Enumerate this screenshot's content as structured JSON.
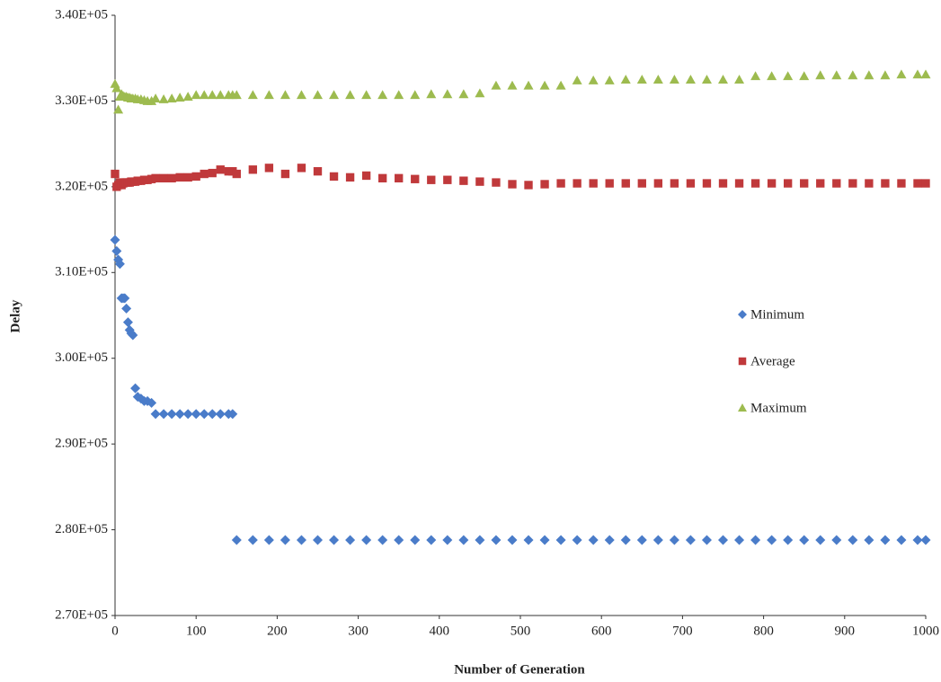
{
  "chart_data": {
    "type": "scatter",
    "x_label": "Number of Generation",
    "y_label": "Delay",
    "x": [
      0,
      2,
      4,
      6,
      8,
      10,
      12,
      14,
      16,
      18,
      20,
      22,
      25,
      28,
      32,
      36,
      40,
      45,
      50,
      60,
      70,
      80,
      90,
      100,
      110,
      120,
      130,
      140,
      145,
      150,
      170,
      190,
      210,
      230,
      250,
      270,
      290,
      310,
      330,
      350,
      370,
      390,
      410,
      430,
      450,
      470,
      490,
      510,
      530,
      550,
      570,
      590,
      610,
      630,
      650,
      670,
      690,
      710,
      730,
      750,
      770,
      790,
      810,
      830,
      850,
      870,
      890,
      910,
      930,
      950,
      970,
      990,
      1000
    ],
    "series": [
      {
        "name": "Minimum",
        "color": "#4a7cc9",
        "marker": "diamond",
        "values": [
          313800,
          312500,
          311500,
          311000,
          307000,
          307000,
          307000,
          305800,
          304200,
          303300,
          302900,
          302700,
          296500,
          295500,
          295300,
          295000,
          295000,
          294800,
          293500,
          293500,
          293500,
          293500,
          293500,
          293500,
          293500,
          293500,
          293500,
          293500,
          293500,
          278800,
          278800,
          278800,
          278800,
          278800,
          278800,
          278800,
          278800,
          278800,
          278800,
          278800,
          278800,
          278800,
          278800,
          278800,
          278800,
          278800,
          278800,
          278800,
          278800,
          278800,
          278800,
          278800,
          278800,
          278800,
          278800,
          278800,
          278800,
          278800,
          278800,
          278800,
          278800,
          278800,
          278800,
          278800,
          278800,
          278800,
          278800,
          278800,
          278800,
          278800,
          278800,
          278800,
          278800
        ]
      },
      {
        "name": "Average",
        "color": "#c0393b",
        "marker": "square",
        "values": [
          321500,
          320000,
          320200,
          320500,
          320200,
          320400,
          320500,
          320500,
          320500,
          320500,
          320600,
          320600,
          320600,
          320700,
          320700,
          320800,
          320800,
          320900,
          321000,
          321000,
          321000,
          321100,
          321100,
          321200,
          321500,
          321600,
          322000,
          321800,
          321800,
          321500,
          322000,
          322200,
          321500,
          322200,
          321800,
          321200,
          321100,
          321300,
          321000,
          321000,
          320900,
          320800,
          320800,
          320700,
          320600,
          320500,
          320300,
          320200,
          320300,
          320400,
          320400,
          320400,
          320400,
          320400,
          320400,
          320400,
          320400,
          320400,
          320400,
          320400,
          320400,
          320400,
          320400,
          320400,
          320400,
          320400,
          320400,
          320400,
          320400,
          320400,
          320400,
          320400,
          320400
        ]
      },
      {
        "name": "Maximum",
        "color": "#9dbb4f",
        "marker": "triangle",
        "values": [
          332000,
          331500,
          329000,
          330500,
          330800,
          330600,
          330500,
          330500,
          330400,
          330400,
          330300,
          330300,
          330300,
          330200,
          330200,
          330100,
          330000,
          330000,
          330300,
          330200,
          330300,
          330400,
          330500,
          330700,
          330700,
          330700,
          330700,
          330700,
          330700,
          330700,
          330700,
          330700,
          330700,
          330700,
          330700,
          330700,
          330700,
          330700,
          330700,
          330700,
          330700,
          330800,
          330800,
          330800,
          330900,
          331800,
          331800,
          331800,
          331800,
          331800,
          332400,
          332400,
          332400,
          332500,
          332500,
          332500,
          332500,
          332500,
          332500,
          332500,
          332500,
          332900,
          332900,
          332900,
          332900,
          333000,
          333000,
          333000,
          333000,
          333000,
          333100,
          333100,
          333100
        ]
      }
    ],
    "xlim": [
      0,
      1000
    ],
    "xticks": [
      0,
      100,
      200,
      300,
      400,
      500,
      600,
      700,
      800,
      900,
      1000
    ],
    "ylim": [
      270000,
      340000
    ],
    "yticks": [
      {
        "value": 270000,
        "label": "2.70E+05"
      },
      {
        "value": 280000,
        "label": "2.80E+05"
      },
      {
        "value": 290000,
        "label": "2.90E+05"
      },
      {
        "value": 300000,
        "label": "3.00E+05"
      },
      {
        "value": 310000,
        "label": "3.10E+05"
      },
      {
        "value": 320000,
        "label": "3.20E+05"
      },
      {
        "value": 330000,
        "label": "3.30E+05"
      },
      {
        "value": 340000,
        "label": "3.40E+05"
      }
    ],
    "grid": false,
    "legend": "center right"
  }
}
